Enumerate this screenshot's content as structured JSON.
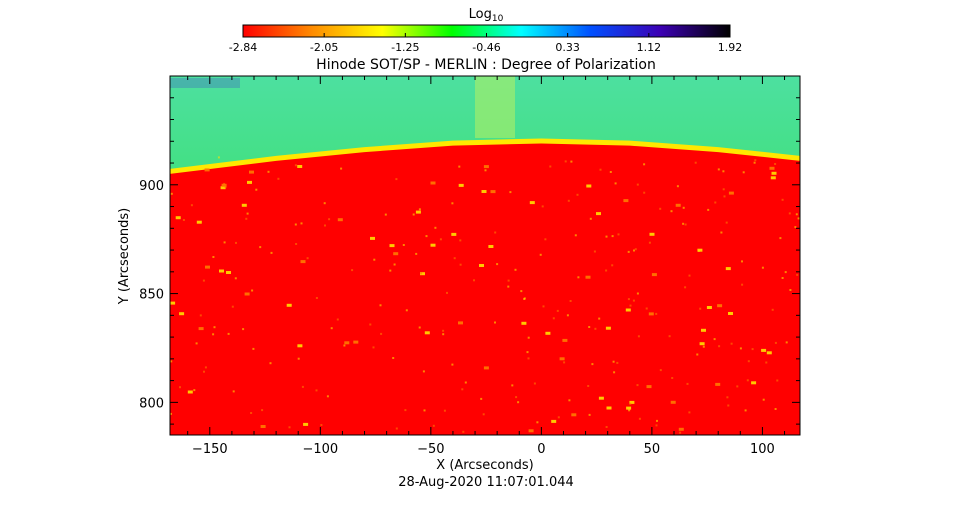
{
  "colorbar": {
    "title_main": "Log",
    "title_sub": "10",
    "tick_labels": [
      "-2.84",
      "-2.05",
      "-1.25",
      "-0.46",
      "0.33",
      "1.12",
      "1.92"
    ],
    "range": [
      -2.84,
      1.92
    ],
    "colormap": [
      "#ff0000",
      "#ff8c00",
      "#ffff00",
      "#00ff00",
      "#00ffff",
      "#0050ff",
      "#3c00b4",
      "#000000"
    ]
  },
  "timestamp": "28-Aug-2020 11:07:01.044",
  "colors": {
    "disk": "#ff0000",
    "limb": "#ffe800",
    "offlimb_top": "#4de0a0",
    "offlimb_bottom": "#20e820",
    "frame": "#000000"
  },
  "chart_data": {
    "type": "heatmap",
    "title": "Hinode SOT/SP - MERLIN : Degree of Polarization",
    "xlabel": "X (Arcseconds)",
    "ylabel": "Y (Arcseconds)",
    "xlim": [
      -168,
      117
    ],
    "ylim": [
      785,
      950
    ],
    "xticks": [
      -150,
      -100,
      -50,
      0,
      50,
      100
    ],
    "xtick_labels": [
      "−150",
      "−100",
      "−50",
      "0",
      "50",
      "100"
    ],
    "yticks": [
      800,
      850,
      900
    ],
    "ytick_labels": [
      "800",
      "850",
      "900"
    ],
    "limb": {
      "x": [
        -168,
        -120,
        -80,
        -40,
        0,
        40,
        80,
        117
      ],
      "y": [
        905,
        911,
        915,
        918,
        919,
        918,
        915,
        911
      ]
    },
    "scale": "log10"
  }
}
